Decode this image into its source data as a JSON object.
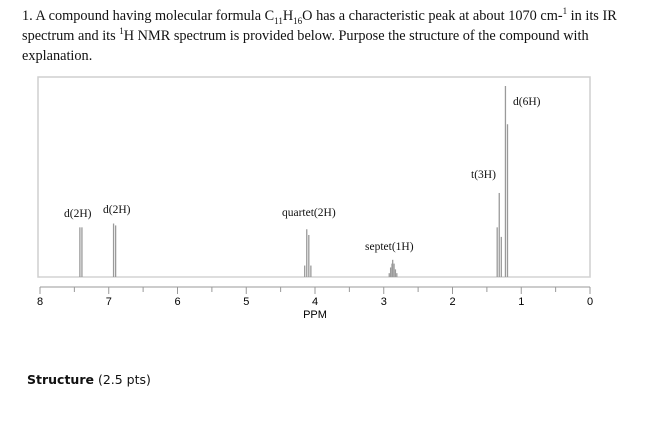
{
  "question": {
    "number": "1.",
    "text_before_formula": "A compound having molecular formula ",
    "formula": {
      "c": "C",
      "c_n": "11",
      "h": "H",
      "h_n": "16",
      "o": "O"
    },
    "text_after_formula": " has a characteristic peak at about 1070 cm-",
    "sup1": "1",
    "text_ir": " in its IR spectrum and its ",
    "sup_h": "1",
    "text_end": "H NMR spectrum is provided below. Purpose the structure of the compound with explanation."
  },
  "chart_data": {
    "type": "line",
    "title": "",
    "xlabel": "PPM",
    "ylabel": "",
    "xlim": [
      8,
      0
    ],
    "x_reversed": true,
    "xticks": [
      "8",
      "7",
      "6",
      "5",
      "4",
      "3",
      "2",
      "1",
      "0"
    ],
    "grid": false,
    "line_color": "#9a9a9a",
    "peaks": [
      {
        "ppm": 7.42,
        "intensity": 26
      },
      {
        "ppm": 7.39,
        "intensity": 26
      },
      {
        "ppm": 6.93,
        "intensity": 28
      },
      {
        "ppm": 6.9,
        "intensity": 27
      },
      {
        "ppm": 4.15,
        "intensity": 6
      },
      {
        "ppm": 4.12,
        "intensity": 25
      },
      {
        "ppm": 4.09,
        "intensity": 22
      },
      {
        "ppm": 4.06,
        "intensity": 6
      },
      {
        "ppm": 2.92,
        "intensity": 2
      },
      {
        "ppm": 2.9,
        "intensity": 5
      },
      {
        "ppm": 2.88,
        "intensity": 7
      },
      {
        "ppm": 2.87,
        "intensity": 9
      },
      {
        "ppm": 2.85,
        "intensity": 7
      },
      {
        "ppm": 2.83,
        "intensity": 4
      },
      {
        "ppm": 2.81,
        "intensity": 2
      },
      {
        "ppm": 1.35,
        "intensity": 26
      },
      {
        "ppm": 1.32,
        "intensity": 44
      },
      {
        "ppm": 1.29,
        "intensity": 21
      },
      {
        "ppm": 1.23,
        "intensity": 100
      },
      {
        "ppm": 1.2,
        "intensity": 80
      }
    ],
    "annotations": [
      "d(2H)",
      "d(2H)",
      "quartet(2H)",
      "septet(1H)",
      "t(3H)",
      "d(6H)"
    ]
  },
  "structure": {
    "label": "Structure",
    "points": "(2.5 pts)"
  }
}
